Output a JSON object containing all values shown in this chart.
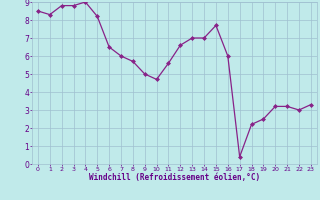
{
  "x": [
    0,
    1,
    2,
    3,
    4,
    5,
    6,
    7,
    8,
    9,
    10,
    11,
    12,
    13,
    14,
    15,
    16,
    17,
    18,
    19,
    20,
    21,
    22,
    23
  ],
  "y": [
    8.5,
    8.3,
    8.8,
    8.8,
    9.0,
    8.2,
    6.5,
    6.0,
    5.7,
    5.0,
    4.7,
    5.6,
    6.6,
    7.0,
    7.0,
    7.7,
    6.0,
    0.4,
    2.2,
    2.5,
    3.2,
    3.2,
    3.0,
    3.3
  ],
  "line_color": "#882288",
  "marker": "D",
  "marker_size": 2.0,
  "line_width": 0.9,
  "bg_color": "#c0eaea",
  "grid_color": "#a0c0d0",
  "xlabel": "Windchill (Refroidissement éolien,°C)",
  "xlabel_color": "#660088",
  "tick_color": "#660088",
  "ylim": [
    0,
    9
  ],
  "xlim": [
    -0.5,
    23.5
  ],
  "yticks": [
    0,
    1,
    2,
    3,
    4,
    5,
    6,
    7,
    8,
    9
  ],
  "xticks": [
    0,
    1,
    2,
    3,
    4,
    5,
    6,
    7,
    8,
    9,
    10,
    11,
    12,
    13,
    14,
    15,
    16,
    17,
    18,
    19,
    20,
    21,
    22,
    23
  ]
}
